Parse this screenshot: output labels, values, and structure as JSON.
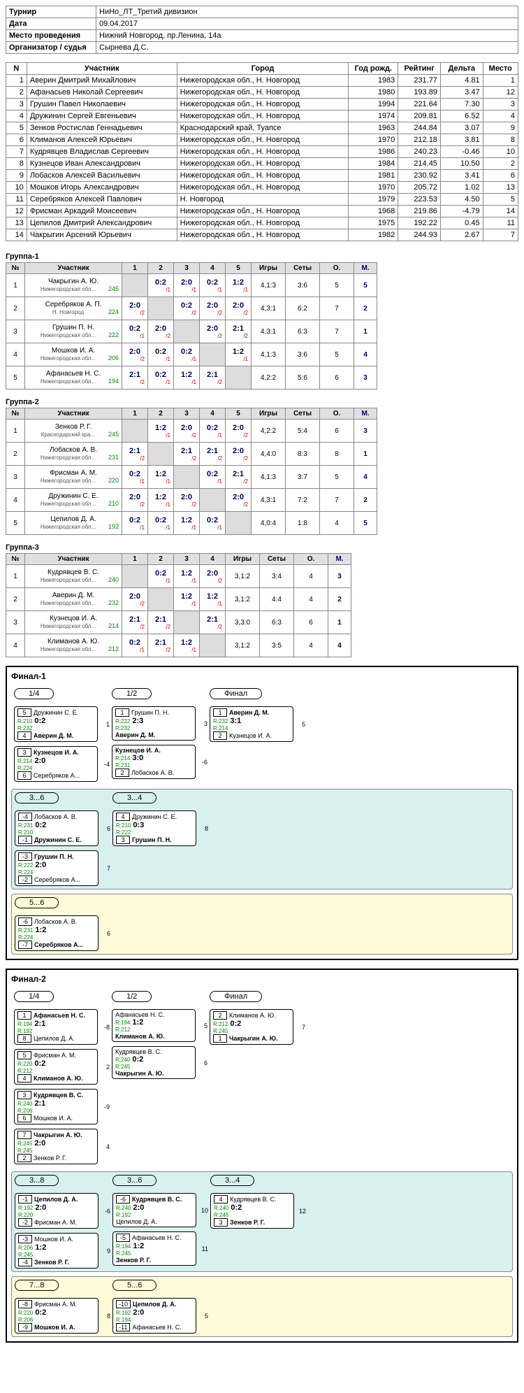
{
  "meta": {
    "labels": {
      "tournament": "Турнир",
      "date": "Дата",
      "venue": "Место проведения",
      "organizer": "Организатор / судья"
    },
    "tournament": "НиНо_ЛТ_Третий дивизион",
    "date": "09.04.2017",
    "venue": "Нижний Новгород, пр.Ленина, 14а",
    "organizer": "Сырнева Д.С."
  },
  "participants": {
    "headers": {
      "n": "N",
      "name": "Участник",
      "city": "Город",
      "year": "Год рожд.",
      "rating": "Рейтинг",
      "delta": "Дельта",
      "place": "Место"
    },
    "rows": [
      {
        "n": 1,
        "name": "Аверин Дмитрий Михайлович",
        "city": "Нижегородская обл., Н. Новгород",
        "year": 1983,
        "rating": "231.77",
        "delta": "4.81",
        "place": 1
      },
      {
        "n": 2,
        "name": "Афанасьев Николай Сергеевич",
        "city": "Нижегородская обл., Н. Новгород",
        "year": 1980,
        "rating": "193.89",
        "delta": "3.47",
        "place": 12
      },
      {
        "n": 3,
        "name": "Грушин Павел Николаевич",
        "city": "Нижегородская обл., Н. Новгород",
        "year": 1994,
        "rating": "221.64",
        "delta": "7.30",
        "place": 3
      },
      {
        "n": 4,
        "name": "Дружинин Сергей Евгеньевич",
        "city": "Нижегородская обл., Н. Новгород",
        "year": 1974,
        "rating": "209.81",
        "delta": "6.52",
        "place": 4
      },
      {
        "n": 5,
        "name": "Зенков Ростислав Геннадьевич",
        "city": "Краснодарский край, Туапсе",
        "year": 1963,
        "rating": "244.84",
        "delta": "3.07",
        "place": 9
      },
      {
        "n": 6,
        "name": "Климанов Алексей Юрьевич",
        "city": "Нижегородская обл., Н. Новгород",
        "year": 1970,
        "rating": "212.18",
        "delta": "3.81",
        "place": 8
      },
      {
        "n": 7,
        "name": "Кудрявцев Владислав Сергеевич",
        "city": "Нижегородская обл., Н. Новгород",
        "year": 1986,
        "rating": "240.23",
        "delta": "-0.46",
        "place": 10
      },
      {
        "n": 8,
        "name": "Кузнецов Иван Александрович",
        "city": "Нижегородская обл., Н. Новгород",
        "year": 1984,
        "rating": "214.45",
        "delta": "10.50",
        "place": 2
      },
      {
        "n": 9,
        "name": "Лобасков Алексей Васильевич",
        "city": "Нижегородская обл., Н. Новгород",
        "year": 1981,
        "rating": "230.92",
        "delta": "3.41",
        "place": 6
      },
      {
        "n": 10,
        "name": "Мошков Игорь Александрович",
        "city": "Нижегородская обл., Н. Новгород",
        "year": 1970,
        "rating": "205.72",
        "delta": "1.02",
        "place": 13
      },
      {
        "n": 11,
        "name": "Серебряков Алексей Павлович",
        "city": "Н. Новгород",
        "year": 1979,
        "rating": "223.53",
        "delta": "4.50",
        "place": 5
      },
      {
        "n": 12,
        "name": "Фрисман Аркадий Моисеевич",
        "city": "Нижегородская обл., Н. Новгород",
        "year": 1968,
        "rating": "219.86",
        "delta": "-4.79",
        "place": 14
      },
      {
        "n": 13,
        "name": "Цепилов Дмитрий Александрович",
        "city": "Нижегородская обл., Н. Новгород",
        "year": 1975,
        "rating": "192.22",
        "delta": "0.45",
        "place": 11
      },
      {
        "n": 14,
        "name": "Чакрыгин Арсений Юрьевич",
        "city": "Нижегородская обл., Н. Новгород",
        "year": 1982,
        "rating": "244.93",
        "delta": "2.67",
        "place": 7
      }
    ]
  },
  "groups": [
    {
      "title": "Группа-1",
      "headers": [
        "№",
        "Участник",
        "1",
        "2",
        "3",
        "4",
        "5",
        "Игры",
        "Сеты",
        "О.",
        "М."
      ],
      "rows": [
        {
          "n": 1,
          "name": "Чакрыгин А. Ю.",
          "city": "Нижегородская обл...",
          "r": "245",
          "cells": [
            "",
            "0:2 /1",
            "2:0 /1",
            "0:2 /1",
            "1:2 /1"
          ],
          "games": "4,1:3",
          "sets": "3:6",
          "o": "5",
          "m": "5"
        },
        {
          "n": 2,
          "name": "Серебряков А. П.",
          "city": "Н. Новгород",
          "r": "224",
          "cells": [
            "2:0 /2",
            "",
            "0:2 /2",
            "2:0 /2",
            "2:0 /2"
          ],
          "games": "4,3:1",
          "sets": "6:2",
          "o": "7",
          "m": "2"
        },
        {
          "n": 3,
          "name": "Грушин П. Н.",
          "city": "Нижегородская обл...",
          "r": "222",
          "cells": [
            "0:2 /1",
            "2:0 /2",
            "",
            "2:0 /2",
            "2:1 /2"
          ],
          "games": "4,3:1",
          "sets": "6:3",
          "o": "7",
          "m": "1"
        },
        {
          "n": 4,
          "name": "Мошков И. А.",
          "city": "Нижегородская обл...",
          "r": "206",
          "cells": [
            "2:0 /2",
            "0:2 /1",
            "0:2 /1",
            "",
            "1:2 /1"
          ],
          "games": "4,1:3",
          "sets": "3:6",
          "o": "5",
          "m": "4"
        },
        {
          "n": 5,
          "name": "Афанасьев Н. С.",
          "city": "Нижегородская обл...",
          "r": "194",
          "cells": [
            "2:1 /2",
            "0:2 /1",
            "1:2 /1",
            "2:1 /2",
            ""
          ],
          "games": "4,2:2",
          "sets": "5:6",
          "o": "6",
          "m": "3"
        }
      ]
    },
    {
      "title": "Группа-2",
      "headers": [
        "№",
        "Участник",
        "1",
        "2",
        "3",
        "4",
        "5",
        "Игры",
        "Сеты",
        "О.",
        "М."
      ],
      "rows": [
        {
          "n": 1,
          "name": "Зенков Р. Г.",
          "city": "Краснодарский кра...",
          "r": "245",
          "cells": [
            "",
            "1:2 /1",
            "2:0 /2",
            "0:2 /1",
            "2:0 /2"
          ],
          "games": "4,2:2",
          "sets": "5:4",
          "o": "6",
          "m": "3"
        },
        {
          "n": 2,
          "name": "Лобасков А. В.",
          "city": "Нижегородская обл...",
          "r": "231",
          "cells": [
            "2:1 /2",
            "",
            "2:1 /2",
            "2:1 /2",
            "2:0 /2"
          ],
          "games": "4,4:0",
          "sets": "8:3",
          "o": "8",
          "m": "1"
        },
        {
          "n": 3,
          "name": "Фрисман А. М.",
          "city": "Нижегородская обл...",
          "r": "220",
          "cells": [
            "0:2 /1",
            "1:2 /1",
            "",
            "0:2 /1",
            "2:1 /2"
          ],
          "games": "4,1:3",
          "sets": "3:7",
          "o": "5",
          "m": "4"
        },
        {
          "n": 4,
          "name": "Дружинин С. Е.",
          "city": "Нижегородская обл...",
          "r": "210",
          "cells": [
            "2:0 /2",
            "1:2 /1",
            "2:0 /2",
            "",
            "2:0 /2"
          ],
          "games": "4,3:1",
          "sets": "7:2",
          "o": "7",
          "m": "2"
        },
        {
          "n": 5,
          "name": "Цепилов Д. А.",
          "city": "Нижегородская обл...",
          "r": "192",
          "cells": [
            "0:2 /1",
            "0:2 /1",
            "1:2 /1",
            "0:2 /1",
            ""
          ],
          "games": "4,0:4",
          "sets": "1:8",
          "o": "4",
          "m": "5"
        }
      ]
    },
    {
      "title": "Группа-3",
      "headers": [
        "№",
        "Участник",
        "1",
        "2",
        "3",
        "4",
        "Игры",
        "Сеты",
        "О.",
        "М."
      ],
      "rows": [
        {
          "n": 1,
          "name": "Кудрявцев В. С.",
          "city": "Нижегородская обл...",
          "r": "240",
          "cells": [
            "",
            "0:2 /1",
            "1:2 /1",
            "2:0 /2"
          ],
          "games": "3,1:2",
          "sets": "3:4",
          "o": "4",
          "m": "3"
        },
        {
          "n": 2,
          "name": "Аверин Д. М.",
          "city": "Нижегородская обл...",
          "r": "232",
          "cells": [
            "2:0 /2",
            "",
            "1:2 /1",
            "1:2 /1"
          ],
          "games": "3,1:2",
          "sets": "4:4",
          "o": "4",
          "m": "2"
        },
        {
          "n": 3,
          "name": "Кузнецов И. А.",
          "city": "Нижегородская обл...",
          "r": "214",
          "cells": [
            "2:1 /2",
            "2:1 /2",
            "",
            "2:1 /2"
          ],
          "games": "3,3:0",
          "sets": "6:3",
          "o": "6",
          "m": "1"
        },
        {
          "n": 4,
          "name": "Климанов А. Ю.",
          "city": "Нижегородская обл...",
          "r": "212",
          "cells": [
            "0:2 /1",
            "2:1 /2",
            "1:2 /1",
            ""
          ],
          "games": "3,1:2",
          "sets": "3:5",
          "o": "4",
          "m": "4"
        }
      ]
    }
  ],
  "finals": [
    {
      "title": "Финал-1",
      "sections": [
        {
          "bg": "",
          "stages": [
            {
              "label": "1/4",
              "matches": [
                {
                  "s1": "5",
                  "p1": "Дружинин С. Е.",
                  "r1": "R:210",
                  "s2": "4",
                  "p2": "Аверин Д. М.",
                  "r2": "R:232",
                  "sc": "0:2",
                  "w": 2,
                  "nx": "1"
                },
                {
                  "s1": "3",
                  "p1": "Кузнецов И. А.",
                  "r1": "R:214",
                  "s2": "6",
                  "p2": "Серебряков А...",
                  "r2": "R:224",
                  "sc": "2:0",
                  "w": 1,
                  "nx": "-4"
                }
              ]
            },
            {
              "label": "1/2",
              "matches": [
                {
                  "s1": "1",
                  "p1": "Грушин П. Н.",
                  "r1": "R:222",
                  "s2": "",
                  "p2": "Аверин Д. М.",
                  "r2": "R:232",
                  "sc": "2:3",
                  "w": 2,
                  "nx": "3 /-7"
                },
                {
                  "s1": "",
                  "p1": "Кузнецов И. А.",
                  "r1": "R:214",
                  "s2": "2",
                  "p2": "Лобасков А. В.",
                  "r2": "R:231",
                  "sc": "3:0",
                  "w": 1,
                  "nx": "-6"
                }
              ]
            },
            {
              "label": "Финал",
              "matches": [
                {
                  "s1": "1",
                  "p1": "Аверин Д. М.",
                  "r1": "R:232",
                  "s2": "2",
                  "p2": "Кузнецов И. А.",
                  "r2": "R:214",
                  "sc": "3:1",
                  "w": 1,
                  "nx": "5"
                }
              ]
            }
          ]
        },
        {
          "bg": "sg-cyan",
          "stages": [
            {
              "label": "3...6",
              "matches": [
                {
                  "s1": "-4",
                  "p1": "Лобасков А. В.",
                  "r1": "R:231",
                  "s2": "-1",
                  "p2": "Дружинин С. Е.",
                  "r2": "R:210",
                  "sc": "0:2",
                  "w": 2,
                  "nx": "6"
                },
                {
                  "s1": "-3",
                  "p1": "Грушин П. Н.",
                  "r1": "R:222",
                  "s2": "-2",
                  "p2": "Серебряков А...",
                  "r2": "R:224",
                  "sc": "2:0",
                  "w": 1,
                  "nx": "7"
                }
              ]
            },
            {
              "label": "3...4",
              "matches": [
                {
                  "s1": "4",
                  "p1": "Дружинин С. Е.",
                  "r1": "R:210",
                  "s2": "3",
                  "p2": "Грушин П. Н.",
                  "r2": "R:222",
                  "sc": "0:3",
                  "w": 2,
                  "nx": "8"
                }
              ]
            }
          ]
        },
        {
          "bg": "sg-yellow",
          "stages": [
            {
              "label": "5...6",
              "matches": [
                {
                  "s1": "-6",
                  "p1": "Лобасков А. В.",
                  "r1": "R:231",
                  "s2": "-7",
                  "p2": "Серебряков А...",
                  "r2": "R:224",
                  "sc": "1:2",
                  "w": 2,
                  "nx": "6 /9 /5"
                }
              ]
            }
          ]
        }
      ]
    },
    {
      "title": "Финал-2",
      "sections": [
        {
          "bg": "",
          "stages": [
            {
              "label": "1/4",
              "matches": [
                {
                  "s1": "1",
                  "p1": "Афанасьев Н. С.",
                  "r1": "R:194",
                  "s2": "8",
                  "p2": "Цепилов Д. А.",
                  "r2": "R:192",
                  "sc": "2:1",
                  "w": 1,
                  "nx": "-8"
                },
                {
                  "s1": "5",
                  "p1": "Фрисман А. М.",
                  "r1": "R:220",
                  "s2": "4",
                  "p2": "Климанов А. Ю.",
                  "r2": "R:212",
                  "sc": "0:2",
                  "w": 2,
                  "nx": "2"
                },
                {
                  "s1": "3",
                  "p1": "Кудрявцев В. С.",
                  "r1": "R:240",
                  "s2": "6",
                  "p2": "Мошков И. А.",
                  "r2": "R:206",
                  "sc": "2:1",
                  "w": 1,
                  "nx": "-9"
                },
                {
                  "s1": "7",
                  "p1": "Чакрыгин А. Ю.",
                  "r1": "R:245",
                  "s2": "2",
                  "p2": "Зенков Р. Г.",
                  "r2": "R:245",
                  "sc": "2:0",
                  "w": 1,
                  "nx": "4"
                }
              ]
            },
            {
              "label": "1/2",
              "matches": [
                {
                  "s1": "",
                  "p1": "Афанасьев Н. С.",
                  "r1": "R:194",
                  "s2": "",
                  "p2": "Климанов А. Ю.",
                  "r2": "R:212",
                  "sc": "1:2",
                  "w": 2,
                  "nx": "5 /-11"
                },
                {
                  "s1": "",
                  "p1": "Кудрявцев В. С.",
                  "r1": "R:240",
                  "s2": "",
                  "p2": "Чакрыгин А. Ю.",
                  "r2": "R:245",
                  "sc": "0:2",
                  "w": 2,
                  "nx": "6 /-10"
                }
              ]
            },
            {
              "label": "Финал",
              "matches": [
                {
                  "s1": "2",
                  "p1": "Климанов А. Ю.",
                  "r1": "R:212",
                  "s2": "1",
                  "p2": "Чакрыгин А. Ю.",
                  "r2": "R:245",
                  "sc": "0:2",
                  "w": 2,
                  "nx": "7"
                }
              ]
            }
          ]
        },
        {
          "bg": "sg-cyan",
          "stages": [
            {
              "label": "3...8",
              "matches": [
                {
                  "s1": "-1",
                  "p1": "Цепилов Д. А.",
                  "r1": "R:192",
                  "s2": "-2",
                  "p2": "Фрисман А. М.",
                  "r2": "R:220",
                  "sc": "2:0",
                  "w": 1,
                  "nx": "-6 /8"
                },
                {
                  "s1": "-3",
                  "p1": "Мошков И. А.",
                  "r1": "R:206",
                  "s2": "-4",
                  "p2": "Зенков Р. Г.",
                  "r2": "R:245",
                  "sc": "1:2",
                  "w": 2,
                  "nx": "9"
                }
              ]
            },
            {
              "label": "3...6",
              "matches": [
                {
                  "s1": "-6",
                  "p1": "Кудрявцев В. С.",
                  "r1": "R:240",
                  "s2": "",
                  "p2": "Цепилов Д. А.",
                  "r2": "R:192",
                  "sc": "2:0",
                  "w": 1,
                  "nx": "10 /-13"
                },
                {
                  "s1": "-5",
                  "p1": "Афанасьев Н. С.",
                  "r1": "R:194",
                  "s2": "",
                  "p2": "Зенков Р. Г.",
                  "r2": "R:245",
                  "sc": "1:2",
                  "w": 2,
                  "nx": "11"
                }
              ]
            },
            {
              "label": "3...4",
              "matches": [
                {
                  "s1": "4",
                  "p1": "Кудрявцев В. С.",
                  "r1": "R:240",
                  "s2": "3",
                  "p2": "Зенков Р. Г.",
                  "r2": "R:245",
                  "sc": "0:2",
                  "w": 2,
                  "nx": "12"
                }
              ]
            }
          ]
        },
        {
          "bg": "sg-yellow",
          "stages": [
            {
              "label": "7...8",
              "matches": [
                {
                  "s1": "-8",
                  "p1": "Фрисман А. М.",
                  "r1": "R:220",
                  "s2": "-9",
                  "p2": "Мошков И. А.",
                  "r2": "R:206",
                  "sc": "0:2",
                  "w": 2,
                  "nx": "8 /14 /7"
                }
              ]
            },
            {
              "label": "5...6",
              "matches": [
                {
                  "s1": "-10",
                  "p1": "Цепилов Д. А.",
                  "r1": "R:192",
                  "s2": "-11",
                  "p2": "Афанасьев Н. С.",
                  "r2": "R:194",
                  "sc": "2:0",
                  "w": 1,
                  "nx": "5 /13 /6"
                }
              ]
            }
          ]
        }
      ]
    }
  ]
}
